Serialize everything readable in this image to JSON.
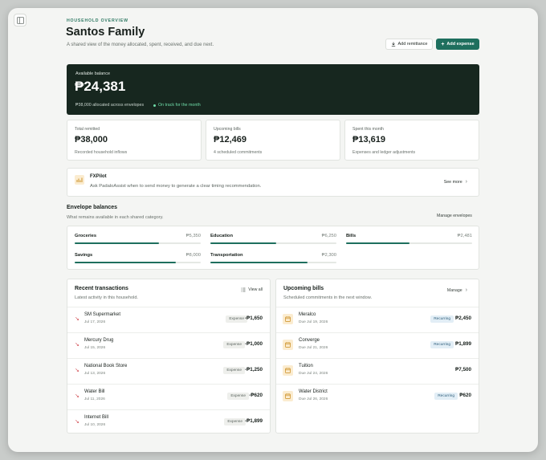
{
  "header": {
    "eyebrow": "HOUSEHOLD OVERVIEW",
    "title": "Santos Family",
    "subtitle": "A shared view of the money allocated, spent, received, and due next.",
    "add_remittance": "Add remittance",
    "add_expense": "Add expense"
  },
  "balance": {
    "label": "Available balance",
    "amount": "₱24,381",
    "note": "₱38,000 allocated across envelopes",
    "status": "On track for the month"
  },
  "stats": [
    {
      "label": "Total remitted",
      "amount": "₱38,000",
      "sub": "Recorded household inflows"
    },
    {
      "label": "Upcoming bills",
      "amount": "₱12,469",
      "sub": "4 scheduled commitments"
    },
    {
      "label": "Spent this month",
      "amount": "₱13,619",
      "sub": "Expenses and ledger adjustments"
    }
  ],
  "fxpilot": {
    "name": "FXPilot",
    "desc": "Ask PadaloAssist when to send money to generate a clear timing recommendation.",
    "more": "See more"
  },
  "envelopes": {
    "title": "Envelope balances",
    "subtitle": "What remains available in each shared category.",
    "manage": "Manage envelopes",
    "items": [
      {
        "name": "Groceries",
        "value": "₱5,350",
        "fill": 0.67
      },
      {
        "name": "Education",
        "value": "₱6,250",
        "fill": 0.52
      },
      {
        "name": "Bills",
        "value": "₱2,481",
        "fill": 0.5
      },
      {
        "name": "Savings",
        "value": "₱8,000",
        "fill": 0.8
      },
      {
        "name": "Transportation",
        "value": "₱2,300",
        "fill": 0.77
      }
    ]
  },
  "transactions": {
    "title": "Recent transactions",
    "subtitle": "Latest activity in this household.",
    "view_all": "View all",
    "items": [
      {
        "name": "SM Supermarket",
        "date": "Jul 17, 2026",
        "tag": "Expense",
        "amount": "-₱1,650"
      },
      {
        "name": "Mercury Drug",
        "date": "Jul 15, 2026",
        "tag": "Expense",
        "amount": "-₱1,000"
      },
      {
        "name": "National Book Store",
        "date": "Jul 13, 2026",
        "tag": "Expense",
        "amount": "-₱1,250"
      },
      {
        "name": "Water Bill",
        "date": "Jul 11, 2026",
        "tag": "Expense",
        "amount": "-₱620"
      },
      {
        "name": "Internet Bill",
        "date": "Jul 10, 2026",
        "tag": "Expense",
        "amount": "-₱1,899"
      }
    ]
  },
  "bills": {
    "title": "Upcoming bills",
    "subtitle": "Scheduled commitments in the next window.",
    "manage": "Manage",
    "items": [
      {
        "name": "Meralco",
        "date": "Due Jul 19, 2026",
        "tag": "Recurring",
        "amount": "₱2,450"
      },
      {
        "name": "Converge",
        "date": "Due Jul 21, 2026",
        "tag": "Recurring",
        "amount": "₱1,899"
      },
      {
        "name": "Tuition",
        "date": "Due Jul 24, 2026",
        "tag": "",
        "amount": "₱7,500"
      },
      {
        "name": "Water District",
        "date": "Due Jul 26, 2026",
        "tag": "Recurring",
        "amount": "₱620"
      }
    ]
  },
  "colors": {
    "accent": "#1e6f5e",
    "hero": "#17271f",
    "negative": "#d0474d",
    "positive": "#6fdca8"
  }
}
